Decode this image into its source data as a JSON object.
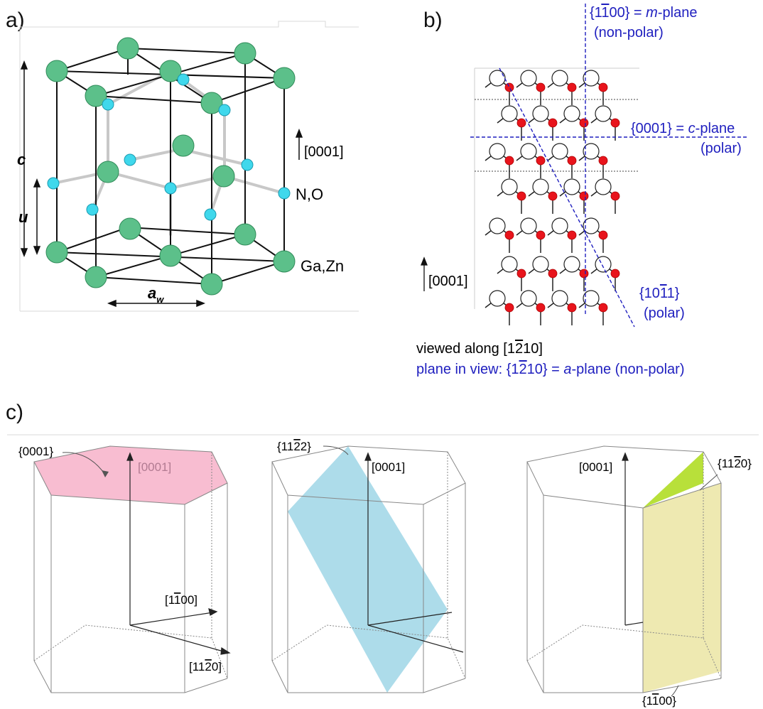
{
  "panel_a": {
    "label": "a)",
    "axis_c": "c",
    "axis_u": "u",
    "axis_aw": "a",
    "axis_aw_sub": "w",
    "direction": "[0001]",
    "anion": "N,O",
    "cation": "Ga,Zn",
    "colors": {
      "cation": "#5cc08a",
      "anion": "#3fd8ec"
    }
  },
  "panel_b": {
    "label": "b)",
    "m_plane_l1": "{1̅0} = m-plane",
    "m_plane_1": "{1",
    "m_plane_bar": "1",
    "m_plane_2": "00} = ",
    "m_plane_it": "m",
    "m_plane_3": "-plane",
    "m_plane_sub": "(non-polar)",
    "c_plane_1": "{0001} = ",
    "c_plane_it": "c",
    "c_plane_2": "-plane",
    "c_plane_sub": "(polar)",
    "s_plane_1": "{10",
    "s_plane_bar": "1",
    "s_plane_2": "1}",
    "s_plane_sub": "(polar)",
    "direction": "[0001]",
    "viewed_1": "viewed along [1",
    "viewed_bar": "2",
    "viewed_2": "10]",
    "inview_1": "plane in view: {1",
    "inview_bar": "2",
    "inview_2": "10} = ",
    "inview_it": "a",
    "inview_3": "-plane (non-polar)",
    "colors": {
      "red_atom": "#e8141c",
      "plane_line": "#1f1fbf"
    }
  },
  "panel_c": {
    "label": "c)",
    "hex1": {
      "plane_label": "{0001}",
      "dir_c": "[0001]",
      "dir_m_1": "[1",
      "dir_m_bar": "1",
      "dir_m_2": "00]",
      "dir_a_1": "[11",
      "dir_a_bar": "2",
      "dir_a_2": "0]",
      "fill": "#f7b6cc"
    },
    "hex2": {
      "plane_1": "{11",
      "plane_bar": "2",
      "plane_2": "2}",
      "dir_c": "[0001]",
      "fill": "#9fd6e6"
    },
    "hex3": {
      "plane_top_1": "{11",
      "plane_top_bar": "2",
      "plane_top_2": "0}",
      "dir_c": "[0001]",
      "plane_bot_1": "{1",
      "plane_bot_bar": "1",
      "plane_bot_2": "00}",
      "fill_top": "#b8e03a",
      "fill_side": "#ece7a8"
    }
  }
}
